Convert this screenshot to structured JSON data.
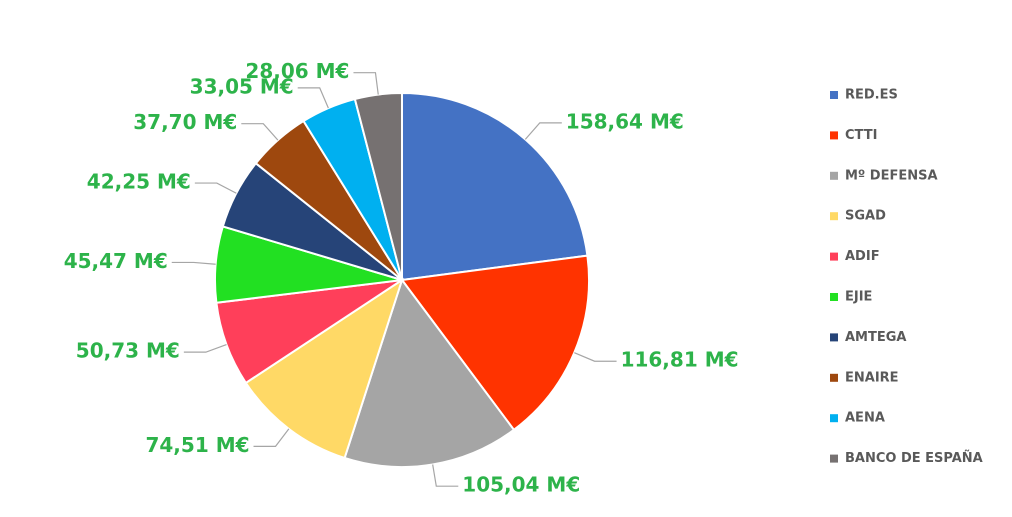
{
  "chart_data": {
    "type": "pie",
    "categories": [
      "RED.ES",
      "CTTI",
      "Mº DEFENSA",
      "SGAD",
      "ADIF",
      "EJIE",
      "AMTEGA",
      "ENAIRE",
      "AENA",
      "BANCO DE ESPAÑA"
    ],
    "values": [
      158.64,
      116.81,
      105.04,
      74.51,
      50.73,
      45.47,
      42.25,
      37.7,
      33.05,
      28.06
    ],
    "value_labels": [
      "158,64 M€",
      "116,81 M€",
      "105,04 M€",
      "74,51 M€",
      "50,73 M€",
      "45,47 M€",
      "42,25 M€",
      "37,70 M€",
      "33,05 M€",
      "28,06 M€"
    ],
    "colors": [
      "#4472c4",
      "#ff3300",
      "#a5a5a5",
      "#ffd966",
      "#ff3f5a",
      "#22e022",
      "#264478",
      "#9e480e",
      "#00b0f0",
      "#767171"
    ],
    "legend": "right"
  }
}
